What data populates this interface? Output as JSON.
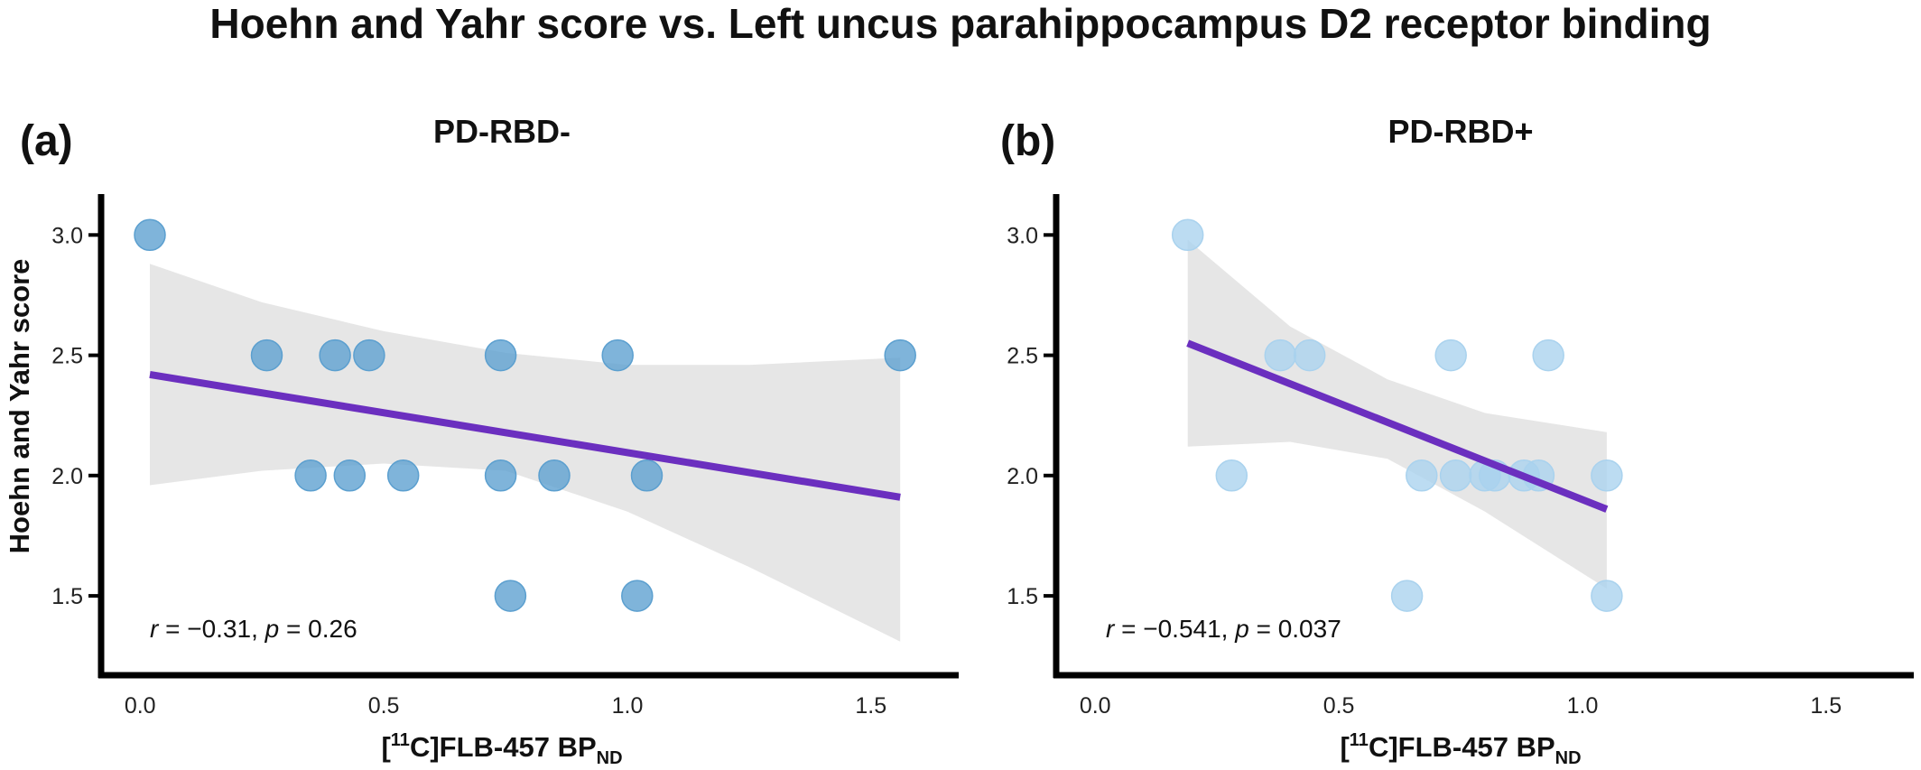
{
  "figure": {
    "title": "Hoehn and Yahr score vs. Left uncus parahippocampus D2 receptor binding"
  },
  "chart_data": [
    {
      "type": "scatter",
      "panel_letter": "(a)",
      "title": "PD-RBD-",
      "xlabel_main": "[",
      "xlabel_sup": "11",
      "xlabel_mid": "C]FLB-457 BP",
      "xlabel_sub": "ND",
      "ylabel": "Hoehn and Yahr score",
      "xlim": [
        -0.08,
        1.68
      ],
      "ylim": [
        1.17,
        3.17
      ],
      "xticks": [
        "0.0",
        "0.5",
        "1.0",
        "1.5"
      ],
      "yticks": [
        "1.5",
        "2.0",
        "2.5",
        "3.0"
      ],
      "x": [
        0.02,
        0.26,
        0.4,
        0.47,
        0.74,
        0.98,
        1.56,
        0.35,
        0.43,
        0.54,
        0.74,
        0.85,
        1.04,
        0.76,
        1.02
      ],
      "y": [
        3.0,
        2.5,
        2.5,
        2.5,
        2.5,
        2.5,
        2.5,
        2.0,
        2.0,
        2.0,
        2.0,
        2.0,
        2.0,
        1.5,
        1.5
      ],
      "regression": {
        "x": [
          0.02,
          1.56
        ],
        "y": [
          2.42,
          1.91
        ]
      },
      "ci_band": {
        "x": [
          0.02,
          0.25,
          0.5,
          0.75,
          1.0,
          1.25,
          1.56
        ],
        "upper": [
          2.88,
          2.72,
          2.6,
          2.51,
          2.46,
          2.46,
          2.49
        ],
        "lower": [
          1.96,
          2.02,
          2.05,
          2.02,
          1.85,
          1.62,
          1.31
        ]
      },
      "r_label": "r",
      "r_value": " = −0.31, ",
      "p_label": "p",
      "p_value": " = 0.26",
      "colors": {
        "points": "#5b9fcf",
        "line": "#6b2fbf",
        "band": "#dedede"
      }
    },
    {
      "type": "scatter",
      "panel_letter": "(b)",
      "title": "PD-RBD+",
      "xlabel_main": "[",
      "xlabel_sup": "11",
      "xlabel_mid": "C]FLB-457 BP",
      "xlabel_sub": "ND",
      "ylabel": "",
      "xlim": [
        -0.08,
        1.68
      ],
      "ylim": [
        1.17,
        3.17
      ],
      "xticks": [
        "0.0",
        "0.5",
        "1.0",
        "1.5"
      ],
      "yticks": [
        "1.5",
        "2.0",
        "2.5",
        "3.0"
      ],
      "x": [
        0.19,
        0.38,
        0.44,
        0.73,
        0.93,
        0.28,
        0.67,
        0.74,
        0.8,
        0.82,
        0.88,
        0.91,
        1.05,
        0.64,
        1.05
      ],
      "y": [
        3.0,
        2.5,
        2.5,
        2.5,
        2.5,
        2.0,
        2.0,
        2.0,
        2.0,
        2.0,
        2.0,
        2.0,
        2.0,
        1.5,
        1.5
      ],
      "regression": {
        "x": [
          0.19,
          1.05
        ],
        "y": [
          2.55,
          1.86
        ]
      },
      "ci_band": {
        "x": [
          0.19,
          0.4,
          0.6,
          0.8,
          1.05
        ],
        "upper": [
          2.98,
          2.62,
          2.4,
          2.26,
          2.18
        ],
        "lower": [
          2.12,
          2.14,
          2.07,
          1.85,
          1.53
        ]
      },
      "r_label": "r",
      "r_value": " = −0.541, ",
      "p_label": "p",
      "p_value": " = 0.037",
      "colors": {
        "points": "#a9d2ee",
        "line": "#6b2fbf",
        "band": "#dedede"
      }
    }
  ]
}
